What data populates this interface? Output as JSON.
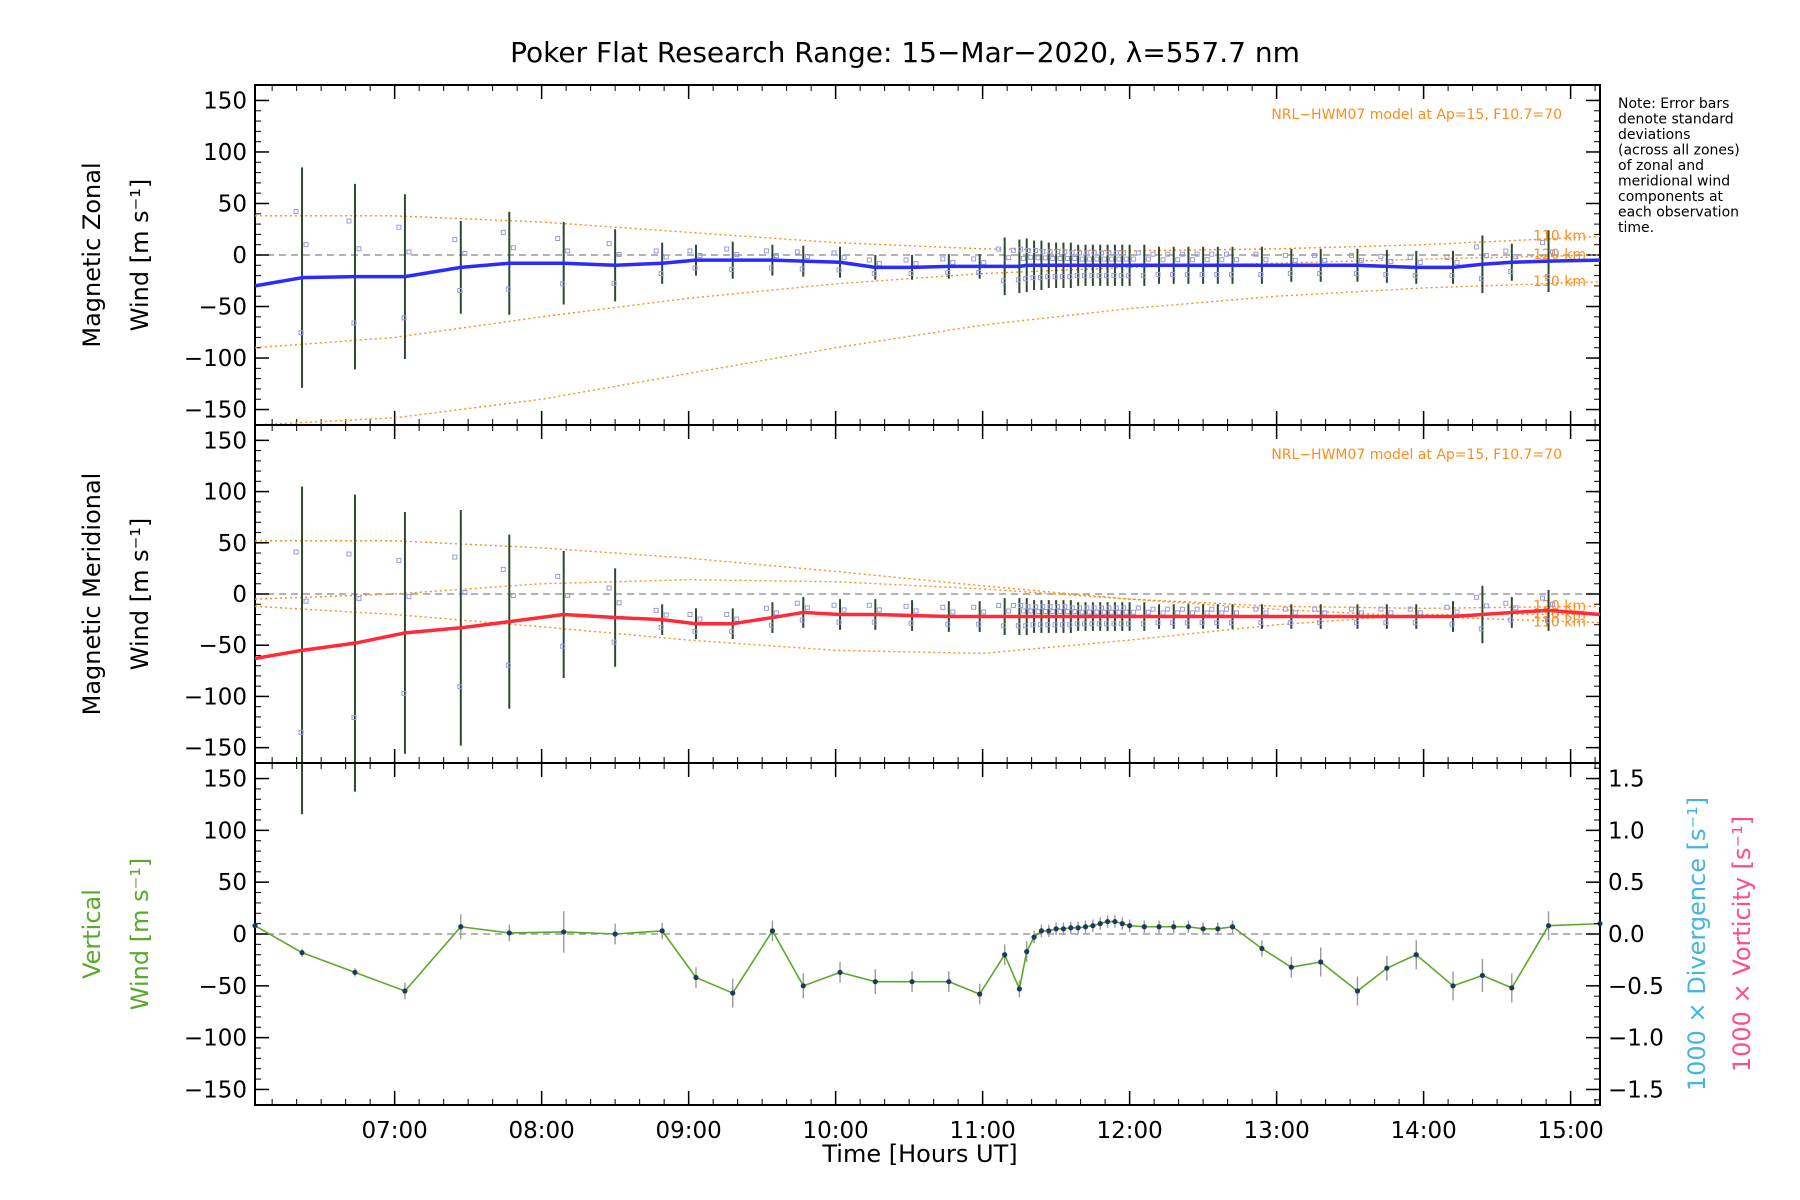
{
  "chart_data": {
    "type": "line",
    "title": "Poker Flat Research Range: 15−Mar−2020, λ=557.7 nm",
    "xlabel": "Time [Hours UT]",
    "xlim": [
      6.05,
      15.2
    ],
    "x_ticks": [
      7,
      8,
      9,
      10,
      11,
      12,
      13,
      14,
      15
    ],
    "x_tick_labels": [
      "07:00",
      "08:00",
      "09:00",
      "10:00",
      "11:00",
      "12:00",
      "13:00",
      "14:00",
      "15:00"
    ],
    "note": [
      "Note: Error bars",
      "denote standard",
      "deviations",
      "(across all zones)",
      "of zonal and",
      "meridional wind",
      "components at",
      "each observation",
      "time."
    ],
    "colors": {
      "zonal": "#2b2bff",
      "meridional": "#ff2a3a",
      "vertical": "#5aaa2a",
      "model": "#ff8c1a",
      "divergence": "#45b4e0",
      "vorticity": "#ff4d8c",
      "scatter": "#9999dd"
    },
    "panels": [
      {
        "id": "zonal",
        "ylabel_line1": "Magnetic Zonal",
        "ylabel_line2": "Wind [m s⁻¹]",
        "ylim": [
          -165,
          165
        ],
        "y_ticks": [
          150,
          100,
          50,
          0,
          -50,
          -100,
          -150
        ],
        "y_tick_labels": [
          "150",
          "100",
          "50",
          "0",
          "−50",
          "−100",
          "−150"
        ],
        "model_label": "NRL−HWM07 model at Ap=15, F10.7=70",
        "model_curves": [
          {
            "name": "110 km",
            "x": [
              6.05,
              7,
              8,
              9,
              10,
              11,
              12,
              13,
              14,
              15.2
            ],
            "y": [
              38,
              38,
              32,
              22,
              12,
              6,
              4,
              6,
              10,
              18
            ]
          },
          {
            "name": "120 km",
            "x": [
              6.05,
              7,
              8,
              9,
              10,
              11,
              12,
              13,
              14,
              15.2
            ],
            "y": [
              -90,
              -80,
              -60,
              -42,
              -28,
              -18,
              -12,
              -8,
              -4,
              0
            ]
          },
          {
            "name": "130 km",
            "x": [
              6.05,
              7,
              8,
              9,
              10,
              11,
              12,
              13,
              14,
              15.2
            ],
            "y": [
              -165,
              -158,
              -140,
              -115,
              -90,
              -68,
              -52,
              -40,
              -32,
              -26
            ]
          }
        ],
        "series": [
          {
            "name": "zonal",
            "x": [
              6.05,
              6.37,
              6.73,
              7.07,
              7.45,
              7.78,
              8.15,
              8.5,
              8.82,
              9.05,
              9.3,
              9.57,
              9.78,
              10.03,
              10.27,
              10.52,
              10.77,
              10.98,
              11.15,
              11.25,
              11.3,
              11.35,
              11.4,
              11.45,
              11.5,
              11.55,
              11.6,
              11.65,
              11.7,
              11.75,
              11.8,
              11.85,
              11.9,
              11.95,
              12.0,
              12.1,
              12.2,
              12.3,
              12.4,
              12.5,
              12.6,
              12.7,
              12.9,
              13.1,
              13.3,
              13.55,
              13.75,
              13.95,
              14.2,
              14.4,
              14.6,
              14.85,
              15.2
            ],
            "y": [
              -30,
              -22,
              -21,
              -21,
              -12,
              -8,
              -8,
              -10,
              -8,
              -5,
              -5,
              -5,
              -6,
              -7,
              -12,
              -12,
              -11,
              -11,
              -11,
              -11,
              -10,
              -10,
              -10,
              -10,
              -10,
              -10,
              -10,
              -10,
              -10,
              -10,
              -10,
              -10,
              -10,
              -10,
              -10,
              -10,
              -10,
              -10,
              -10,
              -10,
              -10,
              -10,
              -10,
              -10,
              -10,
              -10,
              -11,
              -12,
              -12,
              -9,
              -7,
              -6,
              -5
            ],
            "err": [
              0,
              107,
              90,
              80,
              45,
              50,
              40,
              35,
              20,
              15,
              18,
              15,
              15,
              15,
              12,
              12,
              12,
              12,
              28,
              26,
              26,
              24,
              24,
              22,
              22,
              22,
              22,
              20,
              20,
              20,
              20,
              20,
              20,
              20,
              20,
              20,
              18,
              18,
              18,
              18,
              18,
              18,
              18,
              16,
              16,
              16,
              16,
              16,
              16,
              28,
              18,
              30,
              0
            ]
          }
        ]
      },
      {
        "id": "meridional",
        "ylabel_line1": "Magnetic Meridional",
        "ylabel_line2": "Wind [m s⁻¹]",
        "ylim": [
          -165,
          165
        ],
        "y_ticks": [
          150,
          100,
          50,
          0,
          -50,
          -100,
          -150
        ],
        "y_tick_labels": [
          "150",
          "100",
          "50",
          "0",
          "−50",
          "−100",
          "−150"
        ],
        "model_label": "NRL−HWM07 model at Ap=15, F10.7=70",
        "model_curves": [
          {
            "name": "110 km",
            "x": [
              6.05,
              7,
              8,
              9,
              10,
              11,
              12,
              13,
              14,
              15.2
            ],
            "y": [
              52,
              52,
              45,
              35,
              22,
              8,
              -5,
              -15,
              -22,
              -28
            ]
          },
          {
            "name": "120 km",
            "x": [
              6.05,
              7,
              8,
              9,
              10,
              11,
              12,
              13,
              14,
              15.2
            ],
            "y": [
              -5,
              0,
              10,
              14,
              12,
              5,
              -5,
              -12,
              -14,
              -12
            ]
          },
          {
            "name": "130 km",
            "x": [
              6.05,
              7,
              8,
              9,
              10,
              11,
              12,
              13,
              14,
              15.2
            ],
            "y": [
              -12,
              -20,
              -32,
              -45,
              -55,
              -58,
              -45,
              -30,
              -20,
              -20
            ]
          }
        ],
        "series": [
          {
            "name": "meridional",
            "x": [
              6.05,
              6.37,
              6.73,
              7.07,
              7.45,
              7.78,
              8.15,
              8.5,
              8.82,
              9.05,
              9.3,
              9.57,
              9.78,
              10.03,
              10.27,
              10.52,
              10.77,
              10.98,
              11.15,
              11.25,
              11.3,
              11.35,
              11.4,
              11.45,
              11.5,
              11.55,
              11.6,
              11.65,
              11.7,
              11.75,
              11.8,
              11.85,
              11.9,
              11.95,
              12.0,
              12.1,
              12.2,
              12.3,
              12.4,
              12.5,
              12.6,
              12.7,
              12.9,
              13.1,
              13.3,
              13.55,
              13.75,
              13.95,
              14.2,
              14.4,
              14.6,
              14.85,
              15.2
            ],
            "y": [
              -63,
              -55,
              -48,
              -38,
              -33,
              -27,
              -20,
              -23,
              -25,
              -29,
              -29,
              -23,
              -18,
              -20,
              -20,
              -21,
              -22,
              -22,
              -22,
              -22,
              -22,
              -22,
              -22,
              -22,
              -22,
              -22,
              -22,
              -22,
              -22,
              -22,
              -22,
              -22,
              -22,
              -22,
              -22,
              -22,
              -22,
              -22,
              -22,
              -22,
              -22,
              -22,
              -22,
              -22,
              -22,
              -22,
              -22,
              -22,
              -22,
              -20,
              -18,
              -16,
              -20
            ],
            "err": [
              0,
              160,
              145,
              118,
              115,
              85,
              62,
              48,
              15,
              15,
              15,
              15,
              15,
              15,
              15,
              15,
              15,
              15,
              18,
              18,
              18,
              16,
              16,
              16,
              16,
              16,
              16,
              14,
              14,
              14,
              14,
              14,
              14,
              14,
              14,
              14,
              12,
              12,
              12,
              12,
              12,
              12,
              12,
              12,
              12,
              12,
              12,
              12,
              15,
              28,
              15,
              20,
              0
            ]
          }
        ]
      },
      {
        "id": "vertical",
        "ylabel_line1": "Vertical",
        "ylabel_line2": "Wind [m s⁻¹]",
        "ylim": [
          -165,
          165
        ],
        "y_ticks": [
          150,
          100,
          50,
          0,
          -50,
          -100,
          -150
        ],
        "y_tick_labels": [
          "150",
          "100",
          "50",
          "0",
          "−50",
          "−100",
          "−150"
        ],
        "y2lim": [
          -1.65,
          1.65
        ],
        "y2_ticks": [
          1.5,
          1.0,
          0.5,
          0.0,
          -0.5,
          -1.0,
          -1.5
        ],
        "y2_tick_labels": [
          "1.5",
          "1.0",
          "0.5",
          "0.0",
          "−0.5",
          "−1.0",
          "−1.5"
        ],
        "y2label_divergence": "1000 × Divergence [s⁻¹]",
        "y2label_vorticity": "1000 × Vorticity [s⁻¹]",
        "series": [
          {
            "name": "vertical",
            "x": [
              6.05,
              6.37,
              6.73,
              7.07,
              7.45,
              7.78,
              8.15,
              8.5,
              8.82,
              9.05,
              9.3,
              9.57,
              9.78,
              10.03,
              10.27,
              10.52,
              10.77,
              10.98,
              11.15,
              11.25,
              11.3,
              11.35,
              11.4,
              11.45,
              11.5,
              11.55,
              11.6,
              11.65,
              11.7,
              11.75,
              11.8,
              11.85,
              11.9,
              11.95,
              12.0,
              12.1,
              12.2,
              12.3,
              12.4,
              12.5,
              12.6,
              12.7,
              12.9,
              13.1,
              13.3,
              13.55,
              13.75,
              13.95,
              14.2,
              14.4,
              14.6,
              14.85,
              15.2
            ],
            "y": [
              8,
              -18,
              -37,
              -55,
              7,
              1,
              2,
              0,
              3,
              -42,
              -57,
              3,
              -50,
              -37,
              -46,
              -46,
              -46,
              -58,
              -20,
              -53,
              -17,
              -3,
              3,
              3,
              5,
              5,
              6,
              6,
              7,
              8,
              10,
              12,
              12,
              10,
              8,
              7,
              7,
              7,
              7,
              5,
              5,
              7,
              -14,
              -32,
              -27,
              -55,
              -33,
              -20,
              -50,
              -40,
              -52,
              8,
              10
            ],
            "err": [
              0,
              4,
              4,
              8,
              12,
              8,
              20,
              10,
              8,
              10,
              14,
              10,
              12,
              10,
              12,
              10,
              10,
              10,
              10,
              8,
              10,
              6,
              6,
              6,
              6,
              6,
              6,
              6,
              6,
              6,
              6,
              6,
              6,
              6,
              6,
              6,
              6,
              6,
              6,
              6,
              6,
              6,
              8,
              10,
              14,
              14,
              12,
              14,
              14,
              16,
              14,
              14,
              0
            ]
          }
        ]
      }
    ]
  }
}
